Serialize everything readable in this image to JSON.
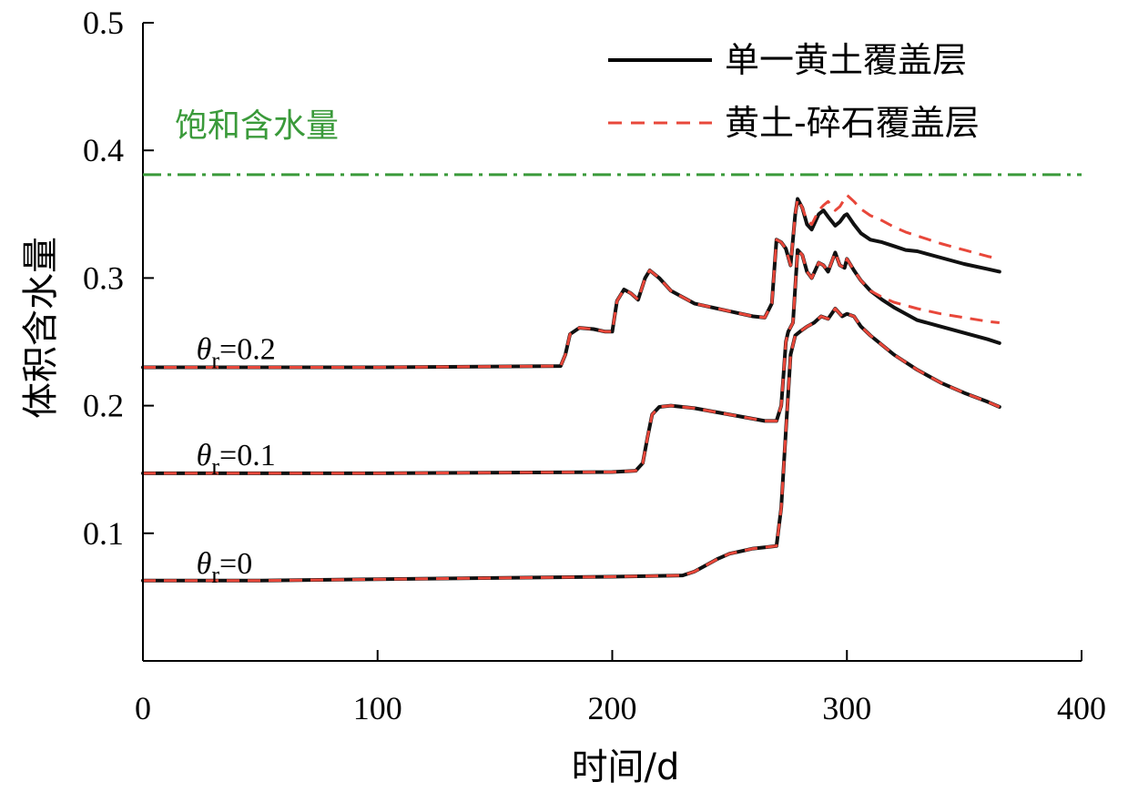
{
  "chart_data": {
    "type": "line",
    "xlabel": "时间/d",
    "ylabel": "体积含水量",
    "xlim": [
      0,
      400
    ],
    "ylim": [
      0,
      0.5
    ],
    "xticks": [
      {
        "value": 0,
        "label": "0"
      },
      {
        "value": 100,
        "label": "100"
      },
      {
        "value": 200,
        "label": "200"
      },
      {
        "value": 300,
        "label": "300"
      },
      {
        "value": 400,
        "label": "400"
      }
    ],
    "yticks": [
      {
        "value": 0.1,
        "label": "0.1"
      },
      {
        "value": 0.2,
        "label": "0.2"
      },
      {
        "value": 0.3,
        "label": "0.3"
      },
      {
        "value": 0.4,
        "label": "0.4"
      },
      {
        "value": 0.5,
        "label": "0.5"
      }
    ],
    "grid": false,
    "legend": {
      "position": "top-right",
      "entries": [
        {
          "label": "单一黄土覆盖层",
          "color": "#000000",
          "style": "solid"
        },
        {
          "label": "黄土-碎石覆盖层",
          "color": "#e8473a",
          "style": "dashed"
        }
      ]
    },
    "reference_line": {
      "label": "饱和含水量",
      "y": 0.381,
      "color": "#3a9a3a",
      "style": "dash-dot"
    },
    "groups": [
      {
        "label_symbol": "θ",
        "label_sub": "r",
        "label_value": "=0.2",
        "label_anchor": [
          15,
          0.245
        ],
        "single_loess": {
          "x": [
            0,
            100,
            178,
            180,
            182,
            186,
            192,
            197,
            200,
            202,
            205,
            208,
            211,
            214,
            216,
            220,
            225,
            235,
            250,
            260,
            265,
            268,
            270,
            272,
            274,
            276,
            278,
            279,
            281,
            283,
            285,
            288,
            290,
            292,
            295,
            297,
            299,
            300,
            303,
            306,
            310,
            315,
            320,
            325,
            330,
            340,
            350,
            360,
            365
          ],
          "y": [
            0.23,
            0.23,
            0.231,
            0.24,
            0.256,
            0.261,
            0.26,
            0.258,
            0.258,
            0.282,
            0.291,
            0.288,
            0.283,
            0.3,
            0.306,
            0.3,
            0.29,
            0.28,
            0.274,
            0.27,
            0.269,
            0.28,
            0.33,
            0.328,
            0.323,
            0.31,
            0.35,
            0.362,
            0.355,
            0.342,
            0.338,
            0.35,
            0.353,
            0.348,
            0.341,
            0.344,
            0.349,
            0.35,
            0.342,
            0.335,
            0.33,
            0.328,
            0.325,
            0.322,
            0.321,
            0.316,
            0.311,
            0.307,
            0.305
          ]
        },
        "loess_gravel": {
          "x": [
            0,
            100,
            178,
            180,
            182,
            186,
            192,
            197,
            200,
            202,
            205,
            208,
            211,
            214,
            216,
            220,
            225,
            235,
            250,
            260,
            265,
            268,
            270,
            272,
            274,
            276,
            278,
            279,
            281,
            283,
            285,
            288,
            290,
            292,
            295,
            297,
            299,
            300,
            303,
            306,
            310,
            315,
            320,
            325,
            330,
            340,
            350,
            360,
            365
          ],
          "y": [
            0.23,
            0.23,
            0.231,
            0.24,
            0.256,
            0.261,
            0.26,
            0.258,
            0.258,
            0.282,
            0.291,
            0.288,
            0.283,
            0.3,
            0.306,
            0.3,
            0.29,
            0.28,
            0.274,
            0.27,
            0.269,
            0.28,
            0.33,
            0.328,
            0.323,
            0.31,
            0.35,
            0.362,
            0.355,
            0.345,
            0.342,
            0.353,
            0.357,
            0.36,
            0.353,
            0.356,
            0.362,
            0.365,
            0.36,
            0.354,
            0.349,
            0.345,
            0.34,
            0.336,
            0.333,
            0.327,
            0.322,
            0.317,
            0.315
          ]
        }
      },
      {
        "label_symbol": "θ",
        "label_sub": "r",
        "label_value": "=0.1",
        "label_anchor": [
          15,
          0.162
        ],
        "single_loess": {
          "x": [
            0,
            100,
            200,
            210,
            213,
            215,
            217,
            220,
            225,
            235,
            250,
            265,
            270,
            272,
            273,
            274,
            275,
            277,
            279,
            281,
            283,
            285,
            288,
            290,
            292,
            295,
            297,
            299,
            300,
            303,
            306,
            310,
            315,
            320,
            330,
            340,
            350,
            360,
            365
          ],
          "y": [
            0.147,
            0.147,
            0.148,
            0.149,
            0.155,
            0.175,
            0.193,
            0.199,
            0.2,
            0.198,
            0.193,
            0.188,
            0.188,
            0.2,
            0.225,
            0.25,
            0.258,
            0.265,
            0.322,
            0.318,
            0.305,
            0.3,
            0.312,
            0.31,
            0.305,
            0.32,
            0.31,
            0.308,
            0.315,
            0.306,
            0.298,
            0.29,
            0.283,
            0.277,
            0.267,
            0.262,
            0.257,
            0.252,
            0.249
          ]
        },
        "loess_gravel": {
          "x": [
            0,
            100,
            200,
            210,
            213,
            215,
            217,
            220,
            225,
            235,
            250,
            265,
            270,
            272,
            273,
            274,
            275,
            277,
            279,
            281,
            283,
            285,
            288,
            290,
            292,
            295,
            297,
            299,
            300,
            303,
            306,
            310,
            315,
            320,
            330,
            340,
            350,
            360,
            365
          ],
          "y": [
            0.147,
            0.147,
            0.148,
            0.149,
            0.155,
            0.175,
            0.193,
            0.199,
            0.2,
            0.198,
            0.193,
            0.188,
            0.188,
            0.2,
            0.225,
            0.25,
            0.258,
            0.265,
            0.322,
            0.318,
            0.305,
            0.3,
            0.312,
            0.31,
            0.305,
            0.32,
            0.31,
            0.308,
            0.315,
            0.306,
            0.298,
            0.29,
            0.285,
            0.281,
            0.276,
            0.272,
            0.269,
            0.266,
            0.265
          ]
        }
      },
      {
        "label_symbol": "θ",
        "label_sub": "r",
        "label_value": "=0",
        "label_anchor": [
          15,
          0.077
        ],
        "single_loess": {
          "x": [
            0,
            50,
            100,
            150,
            200,
            230,
            235,
            240,
            245,
            250,
            255,
            260,
            265,
            270,
            272,
            274,
            276,
            278,
            280,
            283,
            286,
            289,
            292,
            295,
            298,
            300,
            303,
            306,
            310,
            320,
            330,
            340,
            350,
            360,
            365
          ],
          "y": [
            0.063,
            0.063,
            0.064,
            0.065,
            0.066,
            0.067,
            0.07,
            0.075,
            0.08,
            0.084,
            0.086,
            0.088,
            0.089,
            0.09,
            0.12,
            0.18,
            0.24,
            0.255,
            0.258,
            0.262,
            0.265,
            0.27,
            0.268,
            0.276,
            0.27,
            0.272,
            0.27,
            0.262,
            0.255,
            0.24,
            0.228,
            0.218,
            0.21,
            0.203,
            0.199
          ]
        },
        "loess_gravel": {
          "x": [
            0,
            50,
            100,
            150,
            200,
            230,
            235,
            240,
            245,
            250,
            255,
            260,
            265,
            270,
            272,
            274,
            276,
            278,
            280,
            283,
            286,
            289,
            292,
            295,
            298,
            300,
            303,
            306,
            310,
            320,
            330,
            340,
            350,
            360,
            365
          ],
          "y": [
            0.063,
            0.063,
            0.064,
            0.065,
            0.066,
            0.067,
            0.07,
            0.075,
            0.08,
            0.084,
            0.086,
            0.088,
            0.089,
            0.09,
            0.12,
            0.18,
            0.24,
            0.255,
            0.258,
            0.262,
            0.265,
            0.27,
            0.268,
            0.276,
            0.27,
            0.272,
            0.27,
            0.262,
            0.255,
            0.24,
            0.228,
            0.218,
            0.21,
            0.203,
            0.199
          ]
        }
      }
    ]
  }
}
